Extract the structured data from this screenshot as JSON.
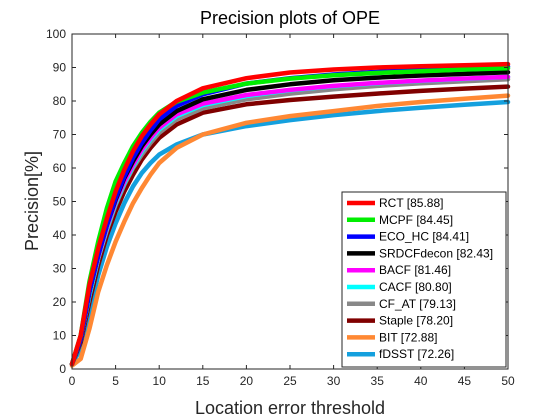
{
  "chart_data": {
    "type": "line",
    "title": "Precision plots of OPE",
    "xlabel": "Location error threshold",
    "ylabel": "Precision[%]",
    "xlim": [
      0,
      50
    ],
    "ylim": [
      0,
      100
    ],
    "xticks": [
      0,
      5,
      10,
      15,
      20,
      25,
      30,
      35,
      40,
      45,
      50
    ],
    "yticks": [
      0,
      10,
      20,
      30,
      40,
      50,
      60,
      70,
      80,
      90,
      100
    ],
    "grid": false,
    "legend_position": "bottom-right",
    "x": [
      0,
      1,
      2,
      3,
      4,
      5,
      6,
      7,
      8,
      9,
      10,
      12,
      15,
      20,
      25,
      30,
      35,
      40,
      45,
      50
    ],
    "series": [
      {
        "name": "RCT [85.88]",
        "color": "#ff0000",
        "values": [
          1.5,
          10,
          25,
          36,
          45,
          53,
          59.5,
          65,
          69.5,
          73,
          76,
          80,
          83.8,
          86.8,
          88.5,
          89.4,
          90,
          90.4,
          90.7,
          91
        ]
      },
      {
        "name": "MCPF [84.45]",
        "color": "#00ee00",
        "values": [
          1.5,
          10,
          26,
          38,
          48,
          56,
          61.5,
          66.5,
          70.5,
          73.8,
          76.5,
          79.8,
          82.5,
          85.2,
          86.7,
          87.7,
          88.4,
          88.9,
          89.4,
          89.8
        ]
      },
      {
        "name": "ECO_HC [84.41]",
        "color": "#0000ff",
        "values": [
          1.5,
          9,
          23,
          34,
          43,
          51,
          57.5,
          63,
          67.5,
          71.2,
          74.5,
          78.5,
          82,
          85.2,
          86.8,
          87.9,
          88.7,
          89.3,
          89.8,
          90.3
        ]
      },
      {
        "name": "SRDCFdecon [82.43]",
        "color": "#000000",
        "values": [
          1.5,
          9,
          23,
          34,
          43,
          50.5,
          57,
          62,
          66.5,
          70,
          73,
          77,
          80.5,
          83.3,
          85,
          86.2,
          87,
          87.6,
          88.1,
          88.6
        ]
      },
      {
        "name": "BACF [81.46]",
        "color": "#ff00ff",
        "values": [
          1.5,
          9,
          23,
          33.5,
          42.5,
          50,
          56,
          61,
          65.5,
          69,
          72,
          76,
          79.2,
          81.8,
          83.3,
          84.5,
          85.4,
          86.1,
          86.7,
          87.2
        ]
      },
      {
        "name": "CACF [80.80]",
        "color": "#00ffff",
        "values": [
          1.5,
          9,
          22,
          33,
          42,
          49.5,
          55.5,
          60.5,
          65,
          68.5,
          71.5,
          75.5,
          78.8,
          81.5,
          83.2,
          84.4,
          85.3,
          86,
          86.6,
          87.2
        ]
      },
      {
        "name": "CF_AT [79.13]",
        "color": "#888888",
        "values": [
          1.5,
          9,
          22,
          33,
          41.5,
          49,
          55,
          60,
          64,
          67.5,
          70.5,
          74.5,
          77.8,
          80.5,
          82.2,
          83.5,
          84.5,
          85.3,
          85.9,
          86.5
        ]
      },
      {
        "name": "Staple [78.20]",
        "color": "#800000",
        "values": [
          1.5,
          8,
          20,
          31,
          40,
          47,
          53,
          58,
          62.5,
          66,
          69,
          73,
          76.5,
          79,
          80.3,
          81.3,
          82.2,
          83,
          83.7,
          84.3
        ]
      },
      {
        "name": "BIT [72.88]",
        "color": "#ff8833",
        "values": [
          1,
          3,
          12,
          23,
          31,
          38,
          44,
          49.5,
          54,
          58,
          61.5,
          66,
          70,
          73.5,
          75.5,
          77,
          78.5,
          79.7,
          80.7,
          81.6
        ]
      },
      {
        "name": "fDSST [72.26]",
        "color": "#14a0de",
        "values": [
          1.5,
          6,
          17,
          28,
          36.5,
          43.5,
          49.5,
          54.5,
          58.5,
          61.5,
          64,
          67,
          70,
          72.5,
          74.3,
          75.8,
          77,
          78,
          78.9,
          79.7
        ]
      }
    ]
  }
}
